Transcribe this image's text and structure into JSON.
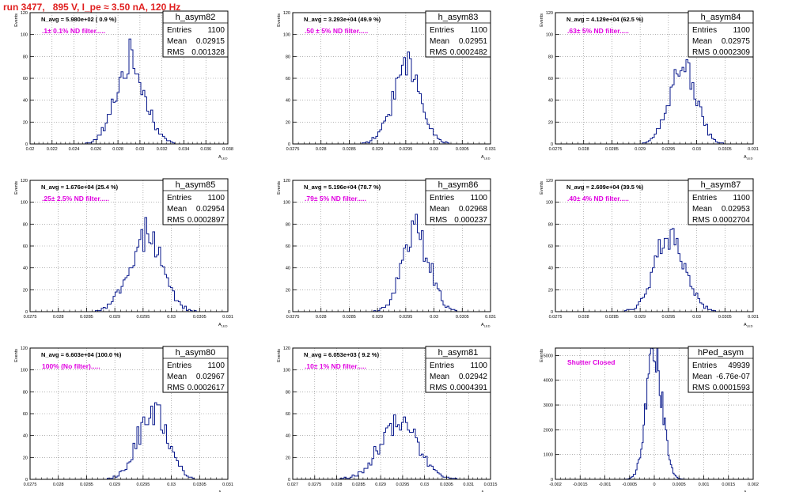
{
  "page_title": "run 3477,   895 V, I_pe ≈ 3.50 nA, 120 Hz",
  "chart_data": [
    {
      "type": "histogram",
      "hist_name": "h_asym82",
      "stats": {
        "Entries": "1100",
        "Mean": "0.02915",
        "RMS": "0.001328"
      },
      "navg_label": "N_avg = 5.980e+02 ( 0.9 %)",
      "filter_label": ".1± 0.1% ND filter",
      "ylabel": "Events",
      "xlabel": "A_{LED}",
      "xlim": [
        0.02,
        0.038
      ],
      "ylim": [
        0,
        120
      ],
      "xticks": [
        0.02,
        0.022,
        0.024,
        0.026,
        0.028,
        0.03,
        0.032,
        0.034,
        0.036,
        0.038
      ],
      "xtick_labels": [
        "0.02",
        "0.022",
        "0.024",
        "0.026",
        "0.028",
        "0.03",
        "0.032",
        "0.034",
        "0.036",
        "0.038"
      ],
      "yticks": [
        0,
        20,
        40,
        60,
        80,
        100,
        120
      ],
      "dist": {
        "mean": 0.02915,
        "rms": 0.001328,
        "peak": 75,
        "bins": 100
      }
    },
    {
      "type": "histogram",
      "hist_name": "h_asym83",
      "stats": {
        "Entries": "1100",
        "Mean": "0.02951",
        "RMS": "0.0002482"
      },
      "navg_label": "N_avg = 3.293e+04 (49.9 %)",
      "filter_label": ".50 ± 5% ND filter",
      "ylabel": "Events",
      "xlabel": "A_{LED}",
      "xlim": [
        0.0275,
        0.031
      ],
      "ylim": [
        0,
        120
      ],
      "xticks": [
        0.0275,
        0.028,
        0.0285,
        0.029,
        0.0295,
        0.03,
        0.0305,
        0.031
      ],
      "xtick_labels": [
        "0.0275",
        "0.028",
        "0.0285",
        "0.029",
        "0.0295",
        "0.03",
        "0.0305",
        "0.031"
      ],
      "yticks": [
        0,
        20,
        40,
        60,
        80,
        100,
        120
      ],
      "dist": {
        "mean": 0.02951,
        "rms": 0.0002482,
        "peak": 70,
        "bins": 100
      }
    },
    {
      "type": "histogram",
      "hist_name": "h_asym84",
      "stats": {
        "Entries": "1100",
        "Mean": "0.02975",
        "RMS": "0.0002309"
      },
      "navg_label": "N_avg = 4.129e+04 (62.5 %)",
      "filter_label": ".63± 5% ND filter",
      "ylabel": "Events",
      "xlabel": "A_{LED}",
      "xlim": [
        0.0275,
        0.031
      ],
      "ylim": [
        0,
        120
      ],
      "xticks": [
        0.0275,
        0.028,
        0.0285,
        0.029,
        0.0295,
        0.03,
        0.0305,
        0.031
      ],
      "xtick_labels": [
        "0.0275",
        "0.028",
        "0.0285",
        "0.029",
        "0.0295",
        "0.03",
        "0.0305",
        "0.031"
      ],
      "yticks": [
        0,
        20,
        40,
        60,
        80,
        100,
        120
      ],
      "dist": {
        "mean": 0.02975,
        "rms": 0.0002309,
        "peak": 72,
        "bins": 100
      }
    },
    {
      "type": "histogram",
      "hist_name": "h_asym85",
      "stats": {
        "Entries": "1100",
        "Mean": "0.02954",
        "RMS": "0.0002897"
      },
      "navg_label": "N_avg = 1.676e+04 (25.4 %)",
      "filter_label": ".25± 2.5% ND filter",
      "ylabel": "Events",
      "xlabel": "A_{LED}",
      "xlim": [
        0.0275,
        0.031
      ],
      "ylim": [
        0,
        120
      ],
      "xticks": [
        0.0275,
        0.028,
        0.0285,
        0.029,
        0.0295,
        0.03,
        0.0305,
        0.031
      ],
      "xtick_labels": [
        "0.0275",
        "0.028",
        "0.0285",
        "0.029",
        "0.0295",
        "0.03",
        "0.0305",
        "0.031"
      ],
      "yticks": [
        0,
        20,
        40,
        60,
        80,
        100,
        120
      ],
      "dist": {
        "mean": 0.02954,
        "rms": 0.0002897,
        "peak": 67,
        "bins": 100
      }
    },
    {
      "type": "histogram",
      "hist_name": "h_asym86",
      "stats": {
        "Entries": "1100",
        "Mean": "0.02968",
        "RMS": "0.000237"
      },
      "navg_label": "N_avg = 5.196e+04 (78.7 %)",
      "filter_label": ".79± 5% ND filter",
      "ylabel": "Events",
      "xlabel": "A_{LED}",
      "xlim": [
        0.0275,
        0.031
      ],
      "ylim": [
        0,
        120
      ],
      "xticks": [
        0.0275,
        0.028,
        0.0285,
        0.029,
        0.0295,
        0.03,
        0.0305,
        0.031
      ],
      "xtick_labels": [
        "0.0275",
        "0.028",
        "0.0285",
        "0.029",
        "0.0295",
        "0.03",
        "0.0305",
        "0.031"
      ],
      "yticks": [
        0,
        20,
        40,
        60,
        80,
        100,
        120
      ],
      "dist": {
        "mean": 0.02968,
        "rms": 0.000237,
        "peak": 72,
        "bins": 100
      }
    },
    {
      "type": "histogram",
      "hist_name": "h_asym87",
      "stats": {
        "Entries": "1100",
        "Mean": "0.02953",
        "RMS": "0.0002704"
      },
      "navg_label": "N_avg = 2.609e+04 (39.5 %)",
      "filter_label": ".40± 4% ND filter",
      "ylabel": "Events",
      "xlabel": "A_{LED}",
      "xlim": [
        0.0275,
        0.031
      ],
      "ylim": [
        0,
        120
      ],
      "xticks": [
        0.0275,
        0.028,
        0.0285,
        0.029,
        0.0295,
        0.03,
        0.0305,
        0.031
      ],
      "xtick_labels": [
        "0.0275",
        "0.028",
        "0.0285",
        "0.029",
        "0.0295",
        "0.03",
        "0.0305",
        "0.031"
      ],
      "yticks": [
        0,
        20,
        40,
        60,
        80,
        100,
        120
      ],
      "dist": {
        "mean": 0.02953,
        "rms": 0.0002704,
        "peak": 65,
        "bins": 100
      }
    },
    {
      "type": "histogram",
      "hist_name": "h_asym80",
      "stats": {
        "Entries": "1100",
        "Mean": "0.02967",
        "RMS": "0.0002617"
      },
      "navg_label": "N_avg = 6.603e+04 (100.0 %)",
      "filter_label": "100% (No filter)",
      "ylabel": "Events",
      "xlabel": "A_{LED}",
      "xlim": [
        0.0275,
        0.031
      ],
      "ylim": [
        0,
        120
      ],
      "xticks": [
        0.0275,
        0.028,
        0.0285,
        0.029,
        0.0295,
        0.03,
        0.0305,
        0.031
      ],
      "xtick_labels": [
        "0.0275",
        "0.028",
        "0.0285",
        "0.029",
        "0.0295",
        "0.03",
        "0.0305",
        "0.031"
      ],
      "yticks": [
        0,
        20,
        40,
        60,
        80,
        100,
        120
      ],
      "dist": {
        "mean": 0.02967,
        "rms": 0.0002617,
        "peak": 62,
        "bins": 100
      }
    },
    {
      "type": "histogram",
      "hist_name": "h_asym81",
      "stats": {
        "Entries": "1100",
        "Mean": "0.02942",
        "RMS": "0.0004391"
      },
      "navg_label": "N_avg = 6.053e+03 ( 9.2 %)",
      "filter_label": ".10± 1% ND filter",
      "ylabel": "Events",
      "xlabel": "A_{LED}",
      "xlim": [
        0.027,
        0.0315
      ],
      "ylim": [
        0,
        120
      ],
      "xticks": [
        0.027,
        0.0275,
        0.028,
        0.0285,
        0.029,
        0.0295,
        0.03,
        0.0305,
        0.031,
        0.0315
      ],
      "xtick_labels": [
        "0.027",
        "0.0275",
        "0.028",
        "0.0285",
        "0.029",
        "0.0295",
        "0.03",
        "0.0305",
        "0.031",
        "0.0315"
      ],
      "yticks": [
        0,
        20,
        40,
        60,
        80,
        100,
        120
      ],
      "dist": {
        "mean": 0.02942,
        "rms": 0.0004391,
        "peak": 50,
        "bins": 100
      }
    },
    {
      "type": "histogram",
      "hist_name": "hPed_asym",
      "stats": {
        "Entries": "49939",
        "Mean": "-6.76e-07",
        "RMS": "0.0001593"
      },
      "navg_label": "",
      "filter_label": "Shutter Closed",
      "ylabel": "Events",
      "xlabel": "A_{LED}",
      "xlim": [
        -0.002,
        0.002
      ],
      "ylim": [
        0,
        5300
      ],
      "xticks": [
        -0.002,
        -0.0015,
        -0.001,
        -0.0005,
        0,
        0.0005,
        0.001,
        0.0015,
        0.002
      ],
      "xtick_labels": [
        "-0.002",
        "-0.0015",
        "-0.001",
        "-0.0005",
        "0",
        "0.0005",
        "0.001",
        "0.0015",
        "0.002"
      ],
      "yticks": [
        0,
        1000,
        2000,
        3000,
        4000,
        5000
      ],
      "dist": {
        "mean": -6.76e-07,
        "rms": 0.0001593,
        "peak": 5100,
        "bins": 160
      }
    }
  ],
  "colors": {
    "histogram_line": "#0a1a8c",
    "filter_label": "#e000e0",
    "title": "#e02020",
    "grid": "#888888",
    "axis": "#000000"
  }
}
